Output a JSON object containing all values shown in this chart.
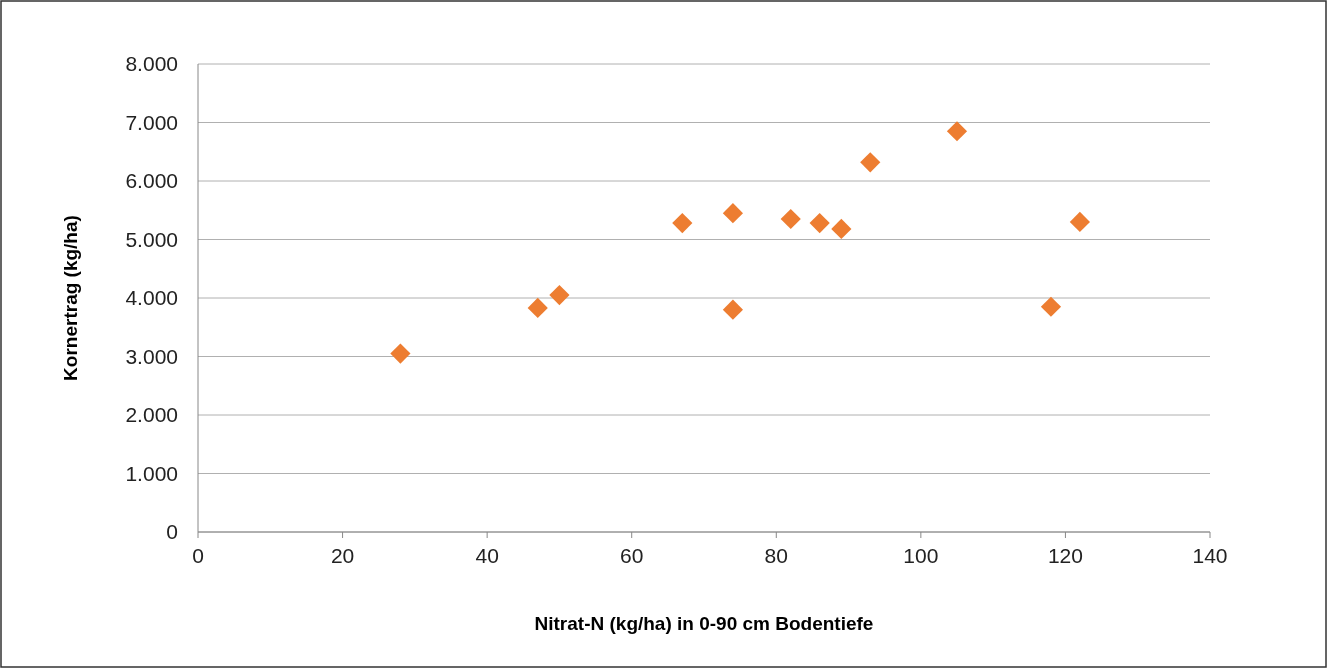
{
  "chart_data": {
    "type": "scatter",
    "xlabel": "Nitrat-N (kg/ha) in 0-90 cm Bodentiefe",
    "ylabel": "Kornertrag (kg/ha)",
    "x": [
      28,
      47,
      50,
      67,
      74,
      74,
      82,
      86,
      89,
      93,
      105,
      118,
      122
    ],
    "series": [
      {
        "color": "#ed7d31",
        "values": [
          3050,
          3830,
          4050,
          5280,
          5450,
          3800,
          5350,
          5280,
          5180,
          6320,
          6850,
          3850,
          5300
        ]
      }
    ],
    "xlim": [
      0,
      140
    ],
    "xticks": [
      0,
      20,
      40,
      60,
      80,
      100,
      120,
      140
    ],
    "ylim": [
      0,
      8000
    ],
    "yticks": [
      0,
      {
        "value": 1000,
        "label": "1.000"
      },
      {
        "value": 2000,
        "label": "2.000"
      },
      {
        "value": 3000,
        "label": "3.000"
      },
      {
        "value": 4000,
        "label": "4.000"
      },
      {
        "value": 5000,
        "label": "5.000"
      },
      {
        "value": 6000,
        "label": "6.000"
      },
      {
        "value": 7000,
        "label": "7.000"
      },
      {
        "value": 8000,
        "label": "8.000"
      }
    ],
    "grid": "y",
    "marker": "diamond"
  }
}
